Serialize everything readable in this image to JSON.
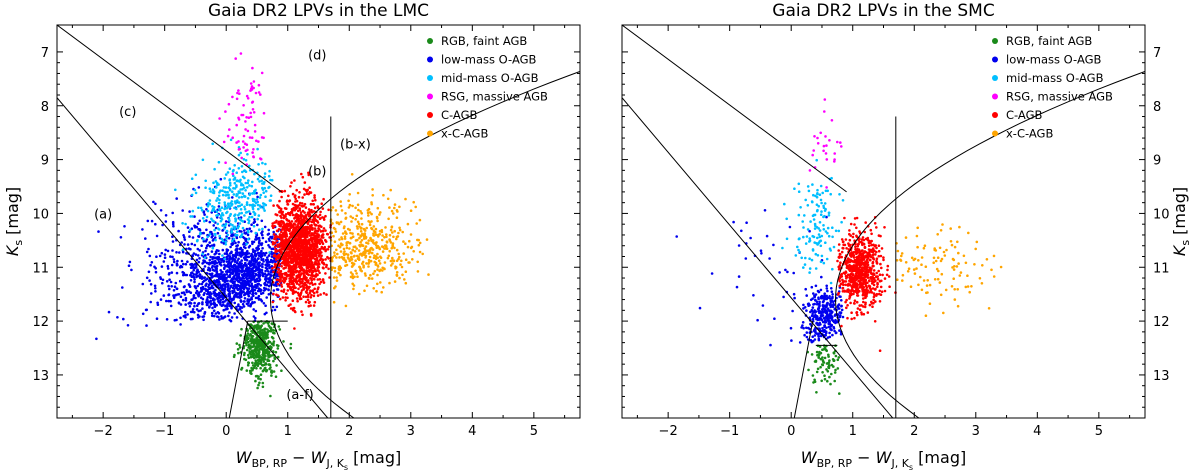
{
  "chart_data": [
    {
      "type": "scatter",
      "title": "Gaia DR2 LPVs in the LMC",
      "xlabel": "W_BP,RP - W_J,Ks [mag]",
      "ylabel": "Ks [mag]",
      "xlim": [
        -2.75,
        5.75
      ],
      "ylim": [
        13.8,
        6.5
      ],
      "xticks": [
        "-2",
        "-1",
        "0",
        "1",
        "2",
        "3",
        "4",
        "5"
      ],
      "yticks": [
        "7",
        "8",
        "9",
        "10",
        "11",
        "12",
        "13"
      ],
      "ylabel_side": "left",
      "legend_position": "top-right",
      "series": [
        {
          "name": "RGB, faint AGB",
          "color": "#1a8a1a"
        },
        {
          "name": "low-mass O-AGB",
          "color": "#0000ee"
        },
        {
          "name": "mid-mass O-AGB",
          "color": "#00bfff"
        },
        {
          "name": "RSG, massive AGB",
          "color": "#ff00ff"
        },
        {
          "name": "C-AGB",
          "color": "#ff0000"
        },
        {
          "name": "x-C-AGB",
          "color": "#ffa500"
        }
      ],
      "region_labels": [
        "(a)",
        "(b)",
        "(c)",
        "(d)",
        "(b-x)",
        "(a-f)"
      ]
    },
    {
      "type": "scatter",
      "title": "Gaia DR2 LPVs in the SMC",
      "xlabel": "W_BP,RP - W_J,Ks [mag]",
      "ylabel": "Ks [mag]",
      "xlim": [
        -2.75,
        5.75
      ],
      "ylim": [
        13.8,
        6.5
      ],
      "xticks": [
        "-2",
        "-1",
        "0",
        "1",
        "2",
        "3",
        "4",
        "5"
      ],
      "yticks": [
        "7",
        "8",
        "9",
        "10",
        "11",
        "12",
        "13"
      ],
      "ylabel_side": "right",
      "legend_position": "top-right",
      "series": [
        {
          "name": "RGB, faint AGB",
          "color": "#1a8a1a"
        },
        {
          "name": "low-mass O-AGB",
          "color": "#0000ee"
        },
        {
          "name": "mid-mass O-AGB",
          "color": "#00bfff"
        },
        {
          "name": "RSG, massive AGB",
          "color": "#ff00ff"
        },
        {
          "name": "C-AGB",
          "color": "#ff0000"
        },
        {
          "name": "x-C-AGB",
          "color": "#ffa500"
        }
      ],
      "region_labels": []
    }
  ]
}
